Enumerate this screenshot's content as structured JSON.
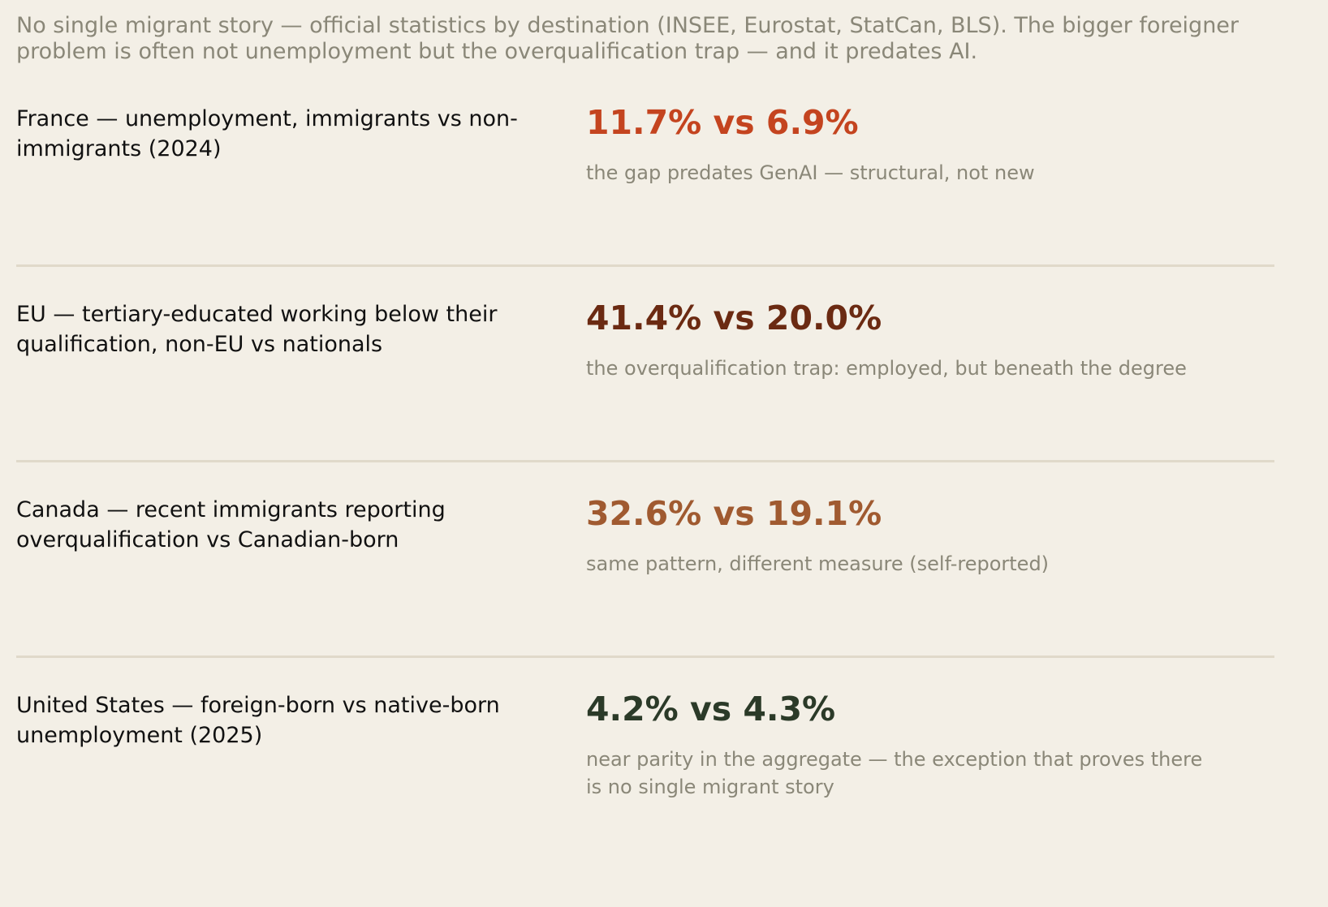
{
  "intro": "No single migrant story — official statistics by destination (INSEE, Eurostat, StatCan, BLS). The bigger foreigner problem is often not unemployment but the overqualification trap — and it predates AI.",
  "rows": [
    {
      "label": "France — unemployment, immigrants vs non-immigrants (2024)",
      "stat": "11.7% vs 6.9%",
      "note": "the gap predates GenAI — structural, not new",
      "color": "#c4441f"
    },
    {
      "label": "EU — tertiary-educated working below their qualification, non-EU vs nationals",
      "stat": "41.4% vs 20.0%",
      "note": "the overqualification trap: employed, but beneath the degree",
      "color": "#6b2a12"
    },
    {
      "label": "Canada — recent immigrants reporting overqualification vs Canadian-born",
      "stat": "32.6% vs 19.1%",
      "note": "same pattern, different measure (self-reported)",
      "color": "#a05a30"
    },
    {
      "label": "United States — foreign-born vs native-born unemployment (2025)",
      "stat": "4.2% vs 4.3%",
      "note": "near parity in the aggregate — the exception that proves there is no single migrant story",
      "color": "#2b3a28"
    }
  ]
}
